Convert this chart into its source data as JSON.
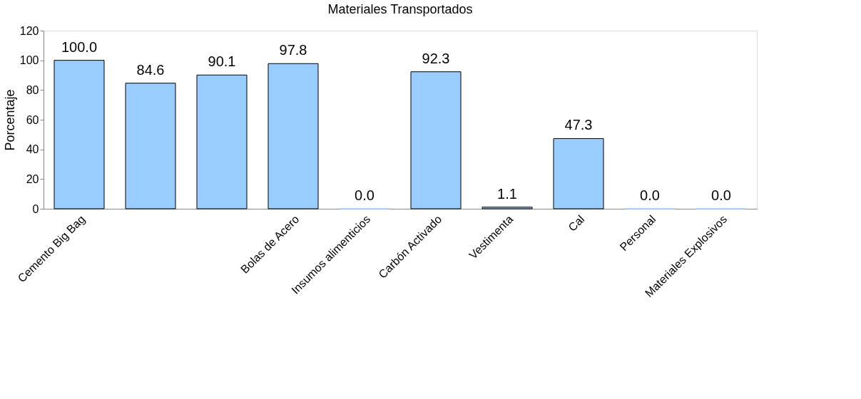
{
  "chart_data": {
    "type": "bar",
    "title": "Materiales Transportados",
    "ylabel": "Porcentaje",
    "categories": [
      "Cemento Big Bag",
      null,
      null,
      "Bolas de Acero",
      "Insumos alimenticios",
      "Carbón Activado",
      "Vestimenta",
      "Cal",
      "Personal",
      "Materiales Explosivos"
    ],
    "values": [
      100.0,
      84.6,
      90.1,
      97.8,
      0.0,
      92.3,
      1.1,
      47.3,
      0.0,
      0.0
    ],
    "value_labels": [
      "100.0",
      "84.6",
      "90.1",
      "97.8",
      "0.0",
      "92.3",
      "1.1",
      "47.3",
      "0.0",
      "0.0"
    ],
    "color": "#99ccff",
    "ylim": [
      0,
      120
    ],
    "yticks": [
      0,
      20,
      40,
      60,
      80,
      100,
      120
    ],
    "grid": false
  }
}
